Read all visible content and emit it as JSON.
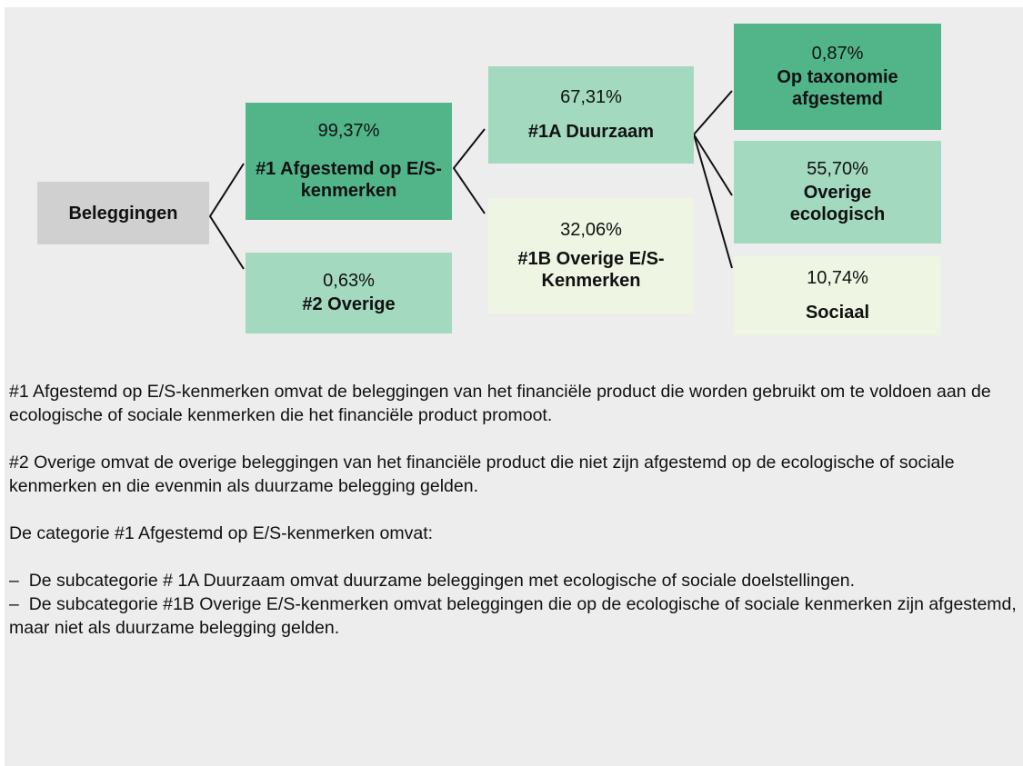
{
  "nodes": [
    {
      "label": "Beleggingen"
    },
    {
      "value": "99,37%",
      "label": "#1 Afgestemd op E/S- kenmerken"
    },
    {
      "value": "0,63%",
      "label": "#2 Overige"
    },
    {
      "value": "67,31%",
      "label": "#1A Duurzaam"
    },
    {
      "value": "32,06%",
      "label": "#1B Overige E/S-Kenmerken"
    },
    {
      "value": "0,87%",
      "label": "Op taxonomie afgestemd"
    },
    {
      "value": "55,70%",
      "label": "Overige ecologisch"
    },
    {
      "value": "10,74%",
      "label": "Sociaal"
    }
  ],
  "notes": [
    "#1 Afgestemd op E/S-kenmerken omvat de beleggingen van het financiële product die worden gebruikt om te voldoen aan de ecologische of sociale kenmerken die het financiële product promoot.",
    "#2 Overige omvat de overige beleggingen van het financiële product die niet zijn afgestemd op de ecologische of sociale kenmerken en die evenmin als duurzame belegging gelden.",
    "De categorie #1 Afgestemd op E/S-kenmerken omvat:"
  ],
  "bullets": [
    "De subcategorie # 1A Duurzaam omvat duurzame beleggingen met ecologische of sociale doelstellingen.",
    "De subcategorie #1B Overige E/S-kenmerken omvat beleggingen die op de ecologische of sociale kenmerken zijn afgestemd, maar niet als duurzame belegging gelden."
  ]
}
